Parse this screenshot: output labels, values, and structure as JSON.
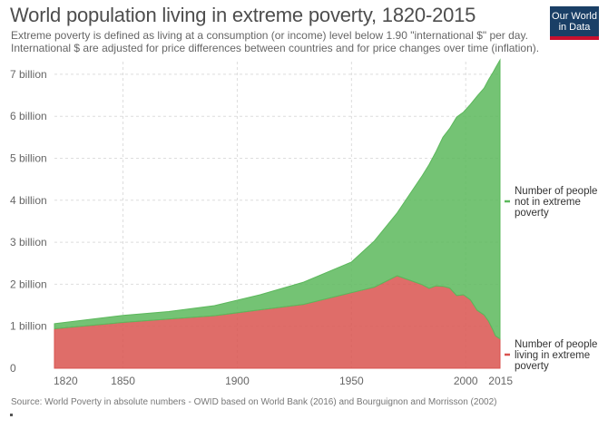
{
  "header": {
    "title": "World population living in extreme poverty, 1820-2015",
    "subtitle_line1": "Extreme poverty is defined as living at a consumption (or income) level below 1.90 \"international $\" per day.",
    "subtitle_line2": "International $ are adjusted for price differences between countries and for price changes over time (inflation).",
    "logo_line1": "Our World",
    "logo_line2": "in Data"
  },
  "footer": {
    "source": "Source: World Poverty in absolute numbers - OWID based on World Bank (2016) and Bourguignon and Morrisson (2002)"
  },
  "colors": {
    "poverty": "#d9534f",
    "not_poverty": "#5cb85c",
    "logo_bg": "#1a3f66",
    "logo_accent": "#c8102e"
  },
  "chart_data": {
    "type": "area",
    "stacked": true,
    "title": "World population living in extreme poverty, 1820-2015",
    "x_ticks": [
      1820,
      1850,
      1900,
      1950,
      2000,
      2015
    ],
    "y_ticks": [
      {
        "value": 0,
        "label": "0"
      },
      {
        "value": 1,
        "label": "1 billion"
      },
      {
        "value": 2,
        "label": "2 billion"
      },
      {
        "value": 3,
        "label": "3 billion"
      },
      {
        "value": 4,
        "label": "4 billion"
      },
      {
        "value": 5,
        "label": "5 billion"
      },
      {
        "value": 6,
        "label": "6 billion"
      },
      {
        "value": 7,
        "label": "7 billion"
      }
    ],
    "xlim": [
      1820,
      2015
    ],
    "ylim": [
      0,
      7.3
    ],
    "grid": true,
    "legend_position": "right",
    "y_unit": "billion",
    "x": [
      1820,
      1850,
      1870,
      1890,
      1910,
      1929,
      1950,
      1960,
      1970,
      1981,
      1984,
      1987,
      1990,
      1993,
      1996,
      1999,
      2002,
      2005,
      2008,
      2010,
      2012,
      2013,
      2015
    ],
    "series": [
      {
        "name": "Number of people living in extreme poverty",
        "color": "#d9534f",
        "values": [
          0.94,
          1.09,
          1.17,
          1.25,
          1.39,
          1.52,
          1.8,
          1.93,
          2.2,
          1.99,
          1.9,
          1.96,
          1.95,
          1.91,
          1.73,
          1.75,
          1.63,
          1.38,
          1.27,
          1.12,
          0.9,
          0.77,
          0.7
        ]
      },
      {
        "name": "Number of people not in extreme poverty",
        "color": "#5cb85c",
        "values": [
          0.12,
          0.17,
          0.18,
          0.24,
          0.36,
          0.53,
          0.73,
          1.1,
          1.5,
          2.6,
          2.95,
          3.2,
          3.55,
          3.8,
          4.25,
          4.35,
          4.65,
          5.1,
          5.4,
          5.75,
          6.15,
          6.38,
          6.64
        ]
      }
    ],
    "legend": [
      {
        "line1": "Number of people",
        "line2": "not in extreme",
        "line3": "poverty",
        "color": "#5cb85c"
      },
      {
        "line1": "Number of people",
        "line2": "living in extreme",
        "line3": "poverty",
        "color": "#d9534f"
      }
    ]
  }
}
